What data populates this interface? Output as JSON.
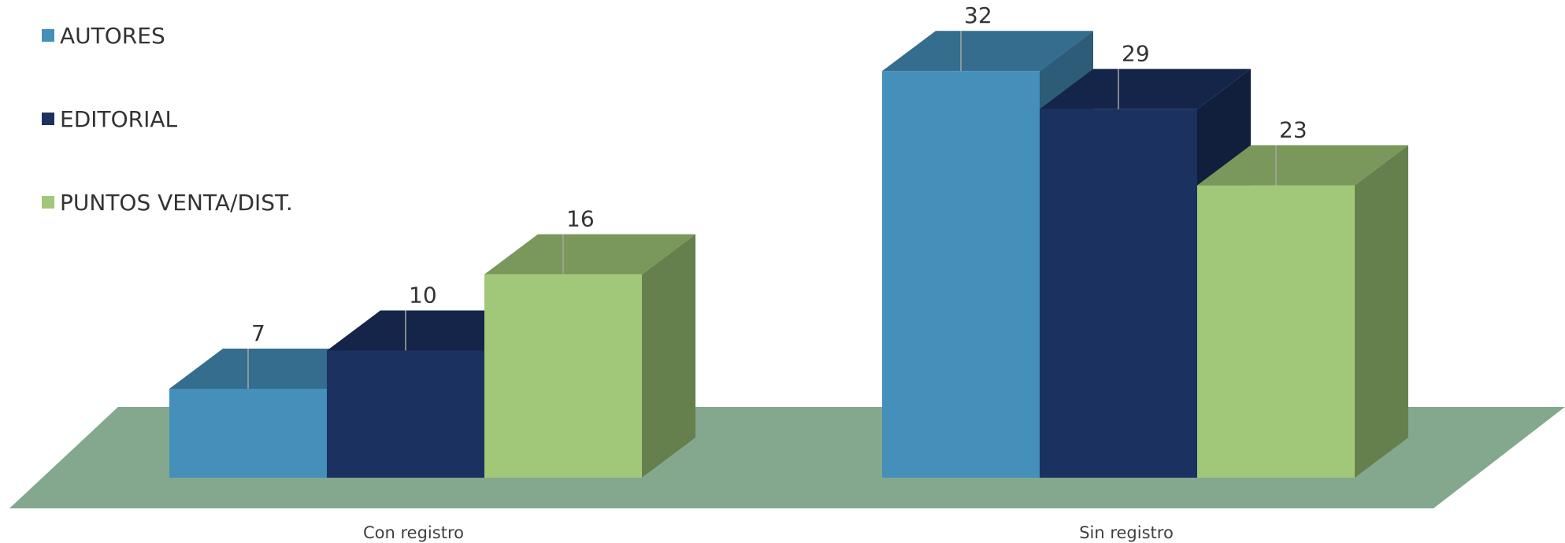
{
  "chart_data": {
    "type": "bar",
    "three_d": true,
    "categories": [
      "Con registro",
      "Sin registro"
    ],
    "series": [
      {
        "name": "AUTORES",
        "values": [
          7,
          32
        ],
        "color": "#458fbb"
      },
      {
        "name": "EDITORIAL",
        "values": [
          10,
          29
        ],
        "color": "#1b3160"
      },
      {
        "name": "PUNTOS VENTA/DIST.",
        "values": [
          16,
          23
        ],
        "color": "#a0c878"
      }
    ],
    "floor_color": "#84a88e",
    "legend_position": "top-left",
    "grid": false,
    "data_labels": true
  }
}
